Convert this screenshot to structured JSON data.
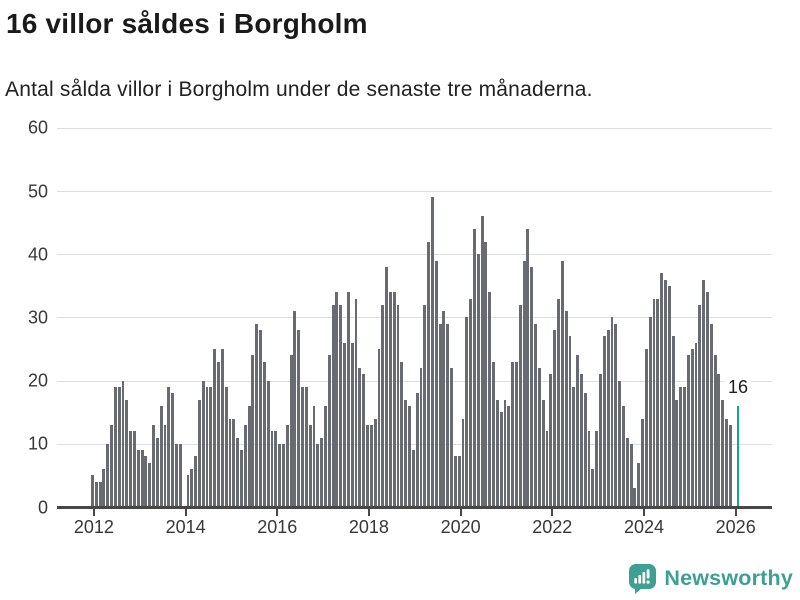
{
  "header": {
    "title": "16 villor såldes i Borgholm",
    "subtitle": "Antal sålda villor i Borgholm under de senaste tre månaderna."
  },
  "chart_data": {
    "type": "bar",
    "title": "16 villor såldes i Borgholm",
    "subtitle": "Antal sålda villor i Borgholm under de senaste tre månaderna.",
    "x_unit": "month",
    "x_start": "2012-01",
    "x_tick_labels": [
      "2012",
      "2014",
      "2016",
      "2018",
      "2020",
      "2022",
      "2024",
      "2026"
    ],
    "y_ticks": [
      0,
      10,
      20,
      30,
      40,
      50,
      60
    ],
    "ylim": [
      0,
      60
    ],
    "grid": "horizontal",
    "legend": "none",
    "series": [
      {
        "name": "Antal sålda villor",
        "values": [
          5,
          4,
          4,
          6,
          10,
          13,
          19,
          19,
          20,
          17,
          12,
          12,
          9,
          9,
          8,
          7,
          13,
          11,
          16,
          13,
          19,
          18,
          10,
          10,
          0,
          5,
          6,
          8,
          17,
          20,
          19,
          19,
          25,
          23,
          25,
          19,
          14,
          14,
          11,
          9,
          13,
          16,
          24,
          29,
          28,
          23,
          20,
          12,
          12,
          10,
          10,
          13,
          24,
          31,
          28,
          19,
          19,
          13,
          16,
          10,
          11,
          16,
          24,
          32,
          34,
          32,
          26,
          34,
          26,
          33,
          22,
          21,
          13,
          13,
          14,
          25,
          32,
          38,
          34,
          34,
          32,
          23,
          17,
          16,
          9,
          18,
          22,
          32,
          42,
          49,
          39,
          29,
          31,
          29,
          22,
          8,
          8,
          14,
          30,
          33,
          44,
          40,
          46,
          42,
          34,
          23,
          17,
          15,
          17,
          16,
          23,
          23,
          32,
          39,
          44,
          38,
          29,
          22,
          17,
          12,
          21,
          28,
          33,
          39,
          31,
          27,
          19,
          24,
          21,
          18,
          12,
          6,
          12,
          21,
          27,
          28,
          30,
          29,
          20,
          16,
          11,
          10,
          3,
          7,
          14,
          25,
          30,
          33,
          33,
          37,
          36,
          35,
          27,
          17,
          19,
          19,
          24,
          25,
          26,
          32,
          36,
          34,
          29,
          24,
          21,
          17,
          14,
          13
        ]
      }
    ],
    "highlight": {
      "label": "16",
      "value": 16,
      "gap_slots": 1,
      "color": "#12a39e"
    },
    "colors": {
      "bar": "#686c72",
      "highlight": "#12a39e",
      "grid": "#dedede",
      "axis": "#474747",
      "tick_text": "#383838"
    }
  },
  "footer": {
    "brand": "Newsworthy",
    "brand_color": "#3da093",
    "logo_icon": "newsworthy-bar-chart-bubble-icon"
  }
}
